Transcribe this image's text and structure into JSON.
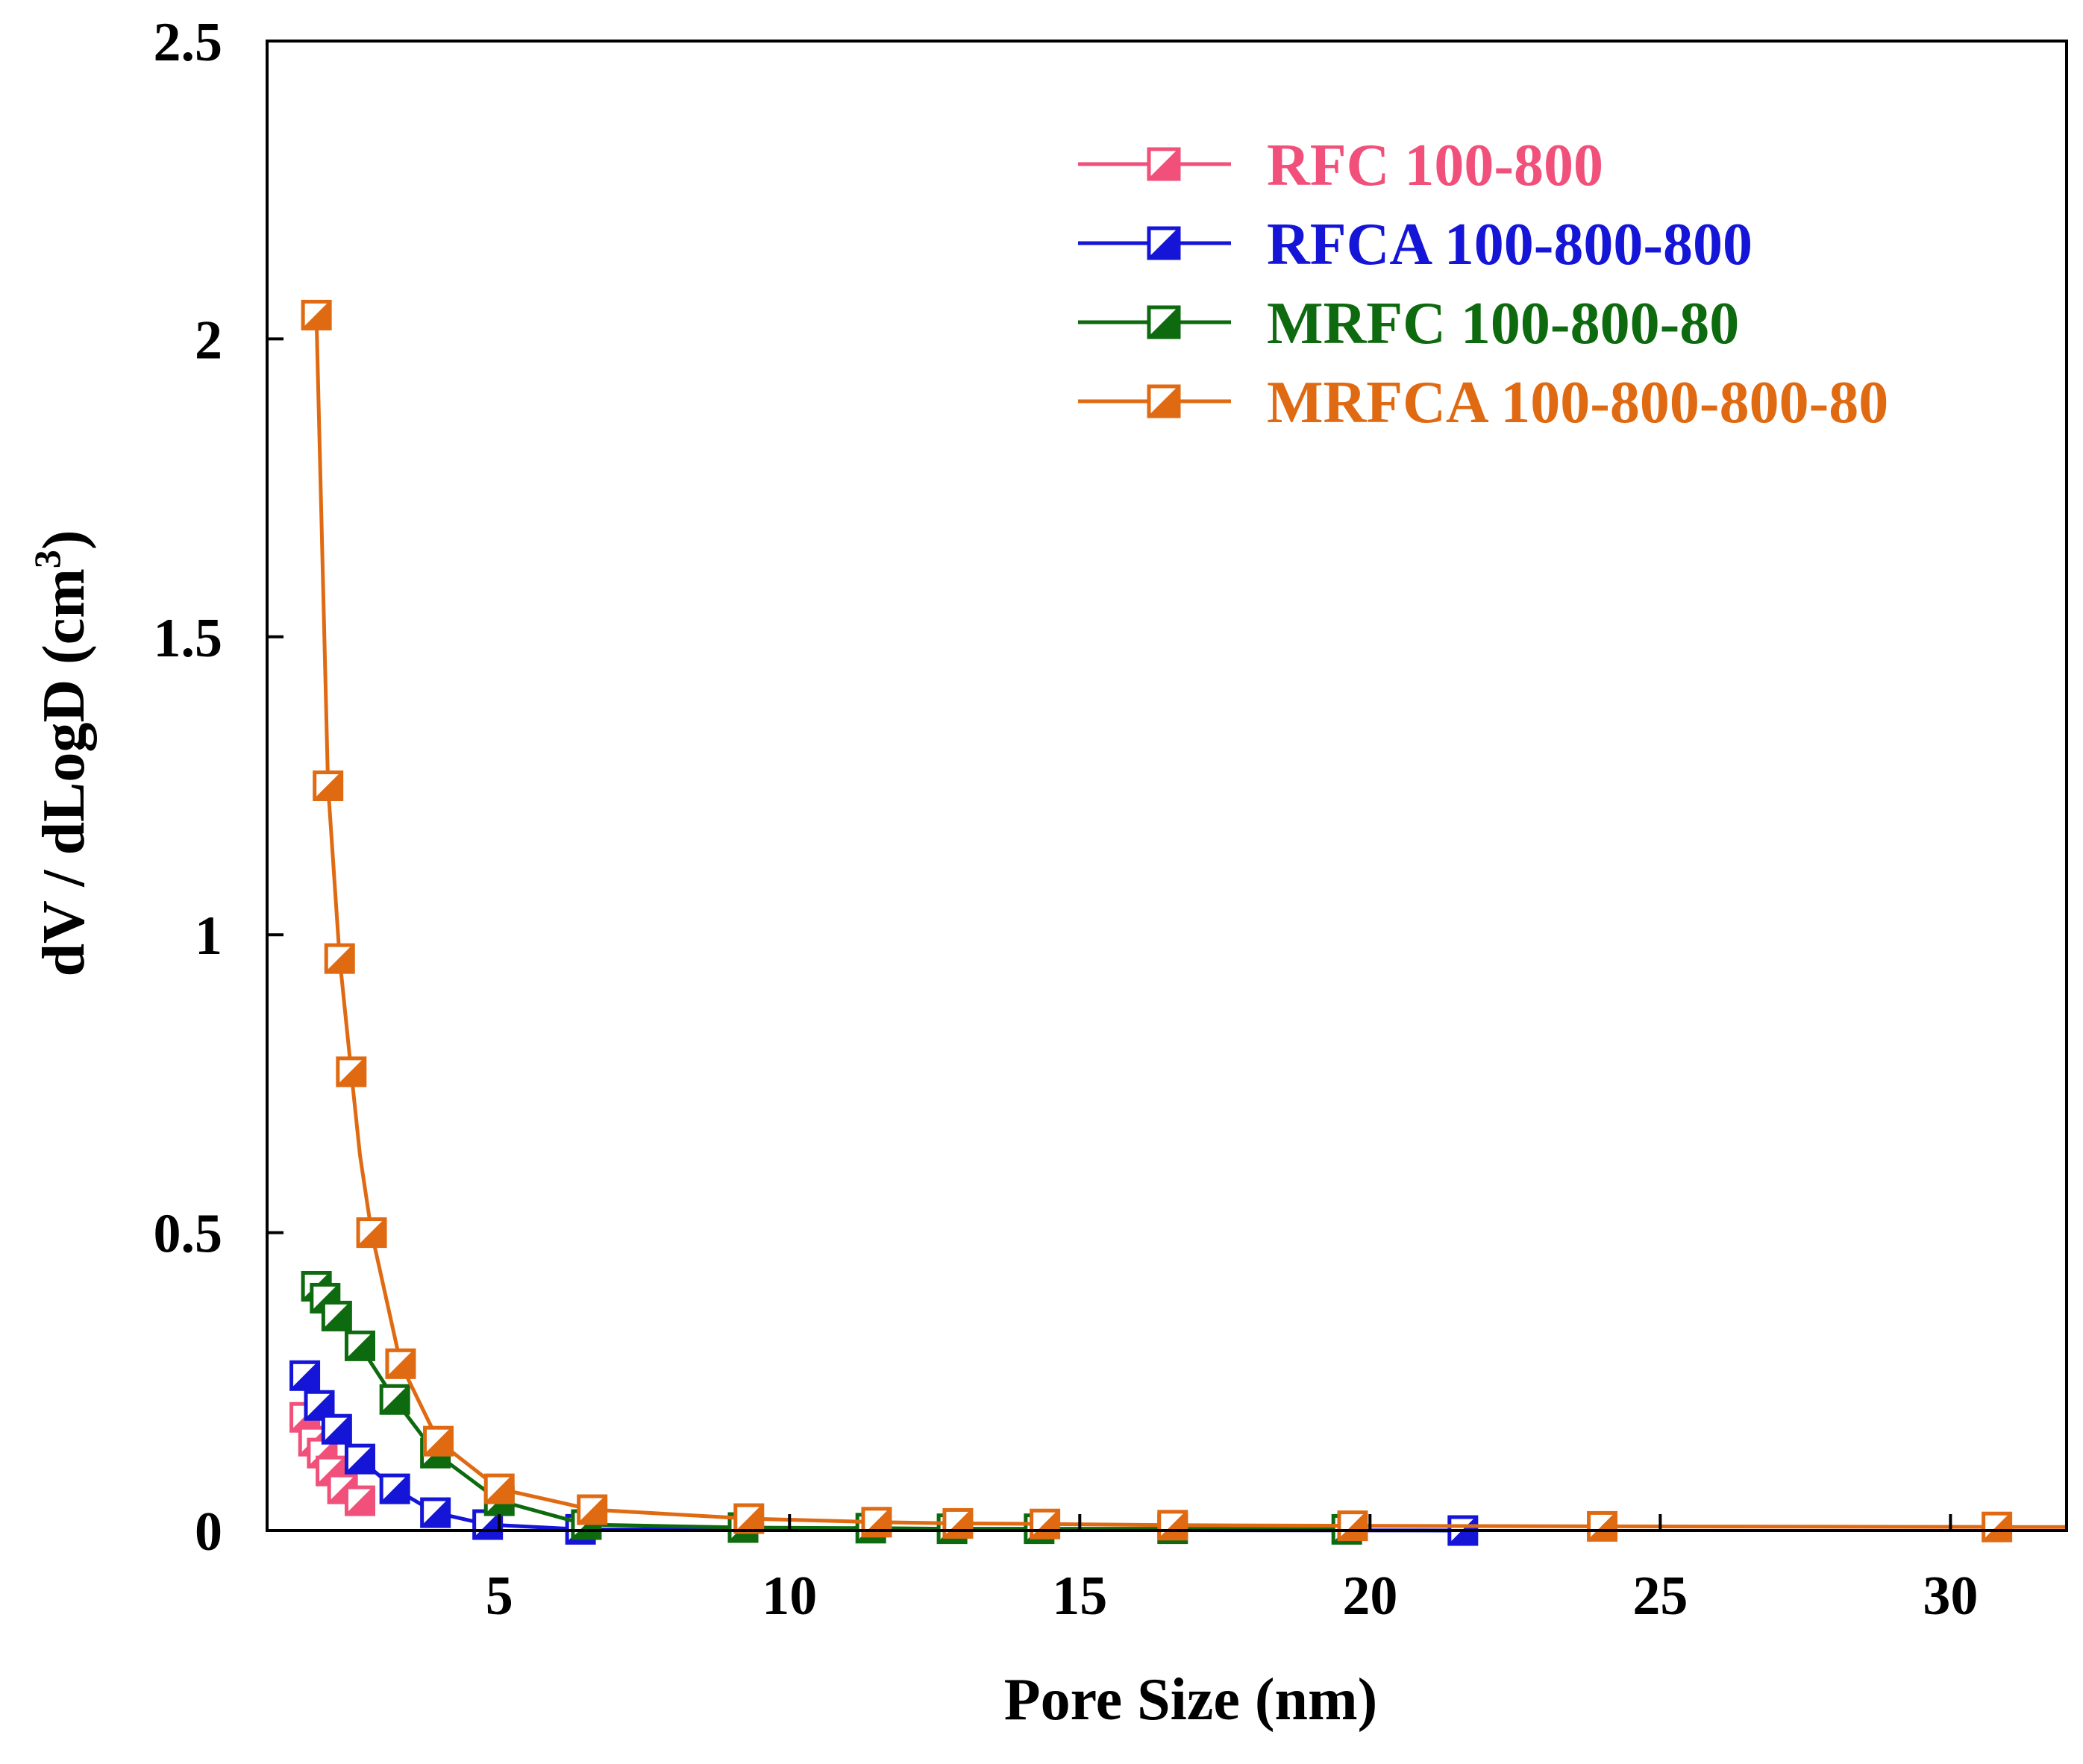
{
  "chart_data": {
    "type": "line",
    "title": "",
    "xlabel": "Pore Size (nm)",
    "ylabel": {
      "main": "dV / dLogD (cm",
      "sup": "3",
      "close": ")"
    },
    "xlim": [
      1,
      32
    ],
    "ylim": [
      0,
      2.5
    ],
    "xticks": [
      5,
      10,
      15,
      20,
      25,
      30
    ],
    "xtick_labels": [
      "5",
      "10",
      "15",
      "20",
      "25",
      "30"
    ],
    "yticks": [
      0,
      0.5,
      1,
      1.5,
      2,
      2.5
    ],
    "ytick_labels": [
      "0",
      "0.5",
      "1",
      "1.5",
      "2",
      "2.5"
    ],
    "grid": false,
    "legend_position": "top-right",
    "marker": "half-filled-square",
    "series": [
      {
        "name": "RFC 100-800",
        "color": "#f0507a",
        "x": [
          1.65,
          1.8,
          1.95,
          2.1,
          2.3,
          2.6
        ],
        "y": [
          0.19,
          0.15,
          0.13,
          0.1,
          0.07,
          0.05
        ]
      },
      {
        "name": "RFCA 100-800-800",
        "color": "#1515d8",
        "x": [
          1.65,
          1.9,
          2.2,
          2.6,
          3.2,
          3.9,
          4.8,
          6.4,
          21.6
        ],
        "y": [
          0.26,
          0.21,
          0.17,
          0.12,
          0.07,
          0.03,
          0.01,
          0.002,
          0.0
        ]
      },
      {
        "name": "MRFC 100-800-80",
        "color": "#0e6a0e",
        "x": [
          1.85,
          2.0,
          2.2,
          2.6,
          3.2,
          3.9,
          5.0,
          6.5,
          9.2,
          11.4,
          12.8,
          14.3,
          16.6,
          19.6
        ],
        "y": [
          0.41,
          0.39,
          0.36,
          0.31,
          0.22,
          0.13,
          0.05,
          0.01,
          0.005,
          0.004,
          0.003,
          0.003,
          0.003,
          0.002
        ]
      },
      {
        "name": "MRFCA 100-800-800-80",
        "color": "#e06a12",
        "x": [
          1.85,
          2.05,
          2.25,
          2.45,
          2.6,
          2.8,
          3.3,
          3.95,
          5.0,
          6.6,
          9.3,
          11.5,
          12.9,
          14.4,
          16.6,
          19.7,
          24.0,
          30.8,
          32.0
        ],
        "y": [
          2.04,
          1.25,
          0.96,
          0.77,
          0.63,
          0.5,
          0.28,
          0.15,
          0.07,
          0.035,
          0.02,
          0.014,
          0.012,
          0.011,
          0.009,
          0.008,
          0.007,
          0.006,
          0.006
        ],
        "markers_on": [
          0,
          1,
          2,
          3,
          5,
          6,
          7,
          8,
          9,
          10,
          11,
          12,
          13,
          14,
          15,
          16,
          17
        ]
      }
    ]
  }
}
